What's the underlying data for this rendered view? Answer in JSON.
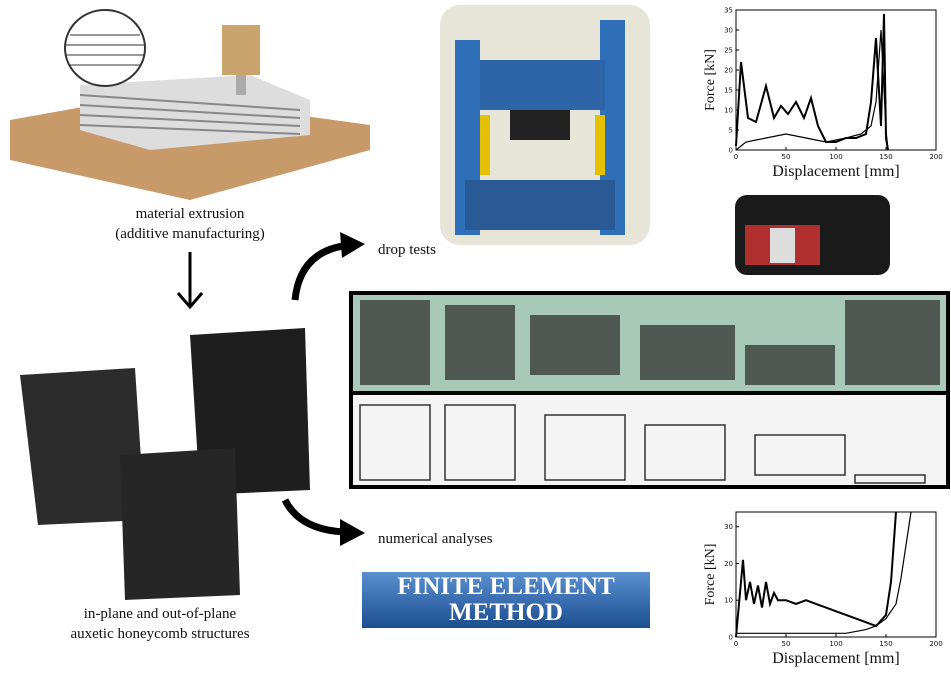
{
  "labels": {
    "extrusion": [
      "material extrusion",
      "(additive manufacturing)"
    ],
    "drop_tests": "drop tests",
    "numerical": "numerical analyses",
    "structures": [
      "in-plane and out-of-plane",
      "auxetic honeycomb structures"
    ],
    "fem": [
      "FINITE ELEMENT",
      "METHOD"
    ]
  },
  "plots": [
    {
      "xlabel": "Displacement [mm]",
      "ylabel": "Force [kN]",
      "xlim": [
        0,
        200
      ],
      "ylim": [
        0,
        35
      ],
      "xticks": [
        0,
        50,
        100,
        150,
        200
      ],
      "yticks": [
        0,
        5,
        10,
        15,
        20,
        25,
        30,
        35
      ],
      "series": [
        {
          "x": [
            0,
            5,
            12,
            20,
            30,
            38,
            45,
            52,
            60,
            68,
            75,
            82,
            90,
            100,
            110,
            120,
            130,
            135,
            140,
            145,
            148,
            150,
            152
          ],
          "values": [
            1,
            22,
            8,
            7,
            16,
            8,
            11,
            9,
            12,
            8,
            13,
            6,
            2,
            2,
            3,
            3,
            4,
            12,
            28,
            6,
            34,
            3,
            0
          ]
        },
        {
          "x": [
            0,
            10,
            30,
            50,
            70,
            90,
            110,
            125,
            135,
            140,
            145,
            150,
            152
          ],
          "values": [
            0,
            2,
            3,
            4,
            3,
            2,
            3,
            4,
            6,
            12,
            30,
            5,
            0
          ]
        }
      ]
    },
    {
      "xlabel": "Displacement [mm]",
      "ylabel": "Force [kN]",
      "xlim": [
        0,
        200
      ],
      "ylim": [
        0,
        34
      ],
      "xticks": [
        0,
        50,
        100,
        150,
        200
      ],
      "yticks": [
        0,
        10,
        20,
        30
      ],
      "series": [
        {
          "x": [
            0,
            4,
            7,
            10,
            14,
            18,
            22,
            26,
            30,
            34,
            38,
            42,
            50,
            60,
            70,
            80,
            90,
            100,
            110,
            120,
            130,
            140,
            150,
            155,
            160
          ],
          "values": [
            0,
            12,
            21,
            10,
            15,
            9,
            14,
            8,
            15,
            9,
            12,
            10,
            10,
            9,
            10,
            9,
            8,
            7,
            6,
            5,
            4,
            3,
            6,
            15,
            34
          ]
        },
        {
          "x": [
            0,
            20,
            50,
            80,
            110,
            130,
            140,
            150,
            160,
            165,
            170,
            175
          ],
          "values": [
            1,
            1,
            1,
            1,
            1,
            2,
            3,
            5,
            9,
            16,
            25,
            34
          ]
        }
      ]
    }
  ]
}
